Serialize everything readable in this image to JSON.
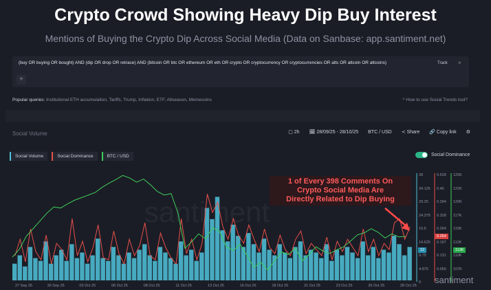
{
  "title": "Crypto Crowd Showing Heavy Dip Buy Interest",
  "subtitle": "Mentions of Buying the Crypto Dip Across Social Media (Data on Sanbase: app.santiment.net)",
  "query": {
    "text": "(buy OR buying OR bought) AND (dip OR drop OR retrace) AND (bitcoin OR btc OR ethereum OR eth OR crypto OR cryptocurrency OR cryptocurrencies OR alts OR altcoin OR altcoins)",
    "track": "Track",
    "close": "×",
    "add": "+"
  },
  "popular": {
    "label": "Popular queries:",
    "items": "Institutional ETH accumulation, Tariffs, Trump, Inflation, ETF, Altseason, Memecoins",
    "howto": "How to use Social Trends tool?"
  },
  "toolbar": {
    "section": "Social Volume",
    "interval": "2h",
    "range": "28/09/25 - 28/10/25",
    "pair": "BTC / USD",
    "share": "Share",
    "copy": "Copy link"
  },
  "legend": [
    "Social Volume",
    "Social Dominance",
    "BTC / USD"
  ],
  "toggle_label": "Social Dominance",
  "annotation": [
    "1 of Every 398 Comments On",
    "Crypto Social Media Are",
    "Directly Related to Dip Buying"
  ],
  "watermark": "santiment",
  "colors": {
    "volume": "#4fc3dc",
    "dominance": "#e8504a",
    "btc": "#3ecf5a"
  },
  "chart_data": {
    "type": "bar",
    "x_labels": [
      "27 Sep 25",
      "30 Sep 25",
      "03 Oct 25",
      "06 Oct 25",
      "08 Oct 25",
      "11 Oct 25",
      "13 Oct 25",
      "16 Oct 25",
      "18 Oct 25",
      "21 Oct 25",
      "23 Oct 25",
      "26 Oct 25",
      "28 Oct 25"
    ],
    "axis_volume": [
      "39",
      "34.125",
      "29.25",
      "24.375",
      "19.5",
      "14.625",
      "9.75",
      "4.875",
      "0"
    ],
    "axis_dominance": [
      "0.528",
      "0.46",
      "0.394",
      "0.328",
      "0.264",
      "0.197",
      "0.131",
      "0.066"
    ],
    "axis_btc": [
      "125K",
      "122K",
      "120K",
      "117K",
      "115K",
      "112K",
      "110K",
      "107K"
    ],
    "badges": {
      "volume": "12",
      "dominance": "0.264",
      "btc": "113K"
    },
    "ylim_volume": [
      0,
      39
    ],
    "ylim_dominance": [
      0,
      0.528
    ],
    "ylim_btc": [
      105,
      126
    ],
    "social_volume": [
      6,
      9,
      5,
      12,
      8,
      7,
      14,
      6,
      9,
      11,
      7,
      13,
      8,
      10,
      6,
      9,
      15,
      8,
      7,
      12,
      9,
      6,
      10,
      8,
      11,
      13,
      9,
      7,
      12,
      10,
      8,
      6,
      14,
      9,
      11,
      7,
      10,
      26,
      22,
      30,
      18,
      14,
      20,
      16,
      12,
      17,
      13,
      10,
      15,
      11,
      9,
      13,
      10,
      8,
      12,
      14,
      9,
      11,
      10,
      8,
      13,
      7,
      11,
      9,
      12,
      10,
      8,
      14,
      9,
      12,
      8,
      11,
      10,
      16,
      13,
      9,
      12
    ],
    "social_dominance": [
      0.12,
      0.2,
      0.09,
      0.25,
      0.14,
      0.1,
      0.22,
      0.08,
      0.18,
      0.15,
      0.1,
      0.3,
      0.12,
      0.19,
      0.09,
      0.16,
      0.27,
      0.11,
      0.1,
      0.24,
      0.13,
      0.08,
      0.2,
      0.12,
      0.17,
      0.28,
      0.12,
      0.1,
      0.23,
      0.16,
      0.11,
      0.08,
      0.3,
      0.13,
      0.2,
      0.1,
      0.18,
      0.42,
      0.33,
      0.38,
      0.26,
      0.2,
      0.3,
      0.22,
      0.18,
      0.27,
      0.2,
      0.14,
      0.25,
      0.16,
      0.13,
      0.22,
      0.15,
      0.12,
      0.2,
      0.24,
      0.13,
      0.18,
      0.15,
      0.12,
      0.21,
      0.1,
      0.19,
      0.14,
      0.2,
      0.16,
      0.12,
      0.25,
      0.14,
      0.2,
      0.12,
      0.18,
      0.15,
      0.28,
      0.3,
      0.2,
      0.26
    ],
    "btc_usd": [
      109.5,
      111,
      113.5,
      115,
      116.5,
      118,
      119.2,
      119,
      119.8,
      120.5,
      121,
      121.5,
      122,
      123,
      123.8,
      124.5,
      125.3,
      124.8,
      124,
      124.6,
      123.5,
      122.2,
      121.5,
      121.8,
      118,
      111.2,
      112.5,
      114,
      113,
      115.2,
      114.5,
      111.5,
      110.8,
      112,
      109.8,
      107.5,
      108.5,
      107,
      108.8,
      110.5,
      110,
      111.2,
      108.8,
      110,
      111.5,
      110.7,
      110.2,
      110.9,
      111.5,
      112.6,
      113.8,
      114.2,
      115,
      114.3,
      113.2,
      114,
      113.4,
      113.5
    ]
  }
}
